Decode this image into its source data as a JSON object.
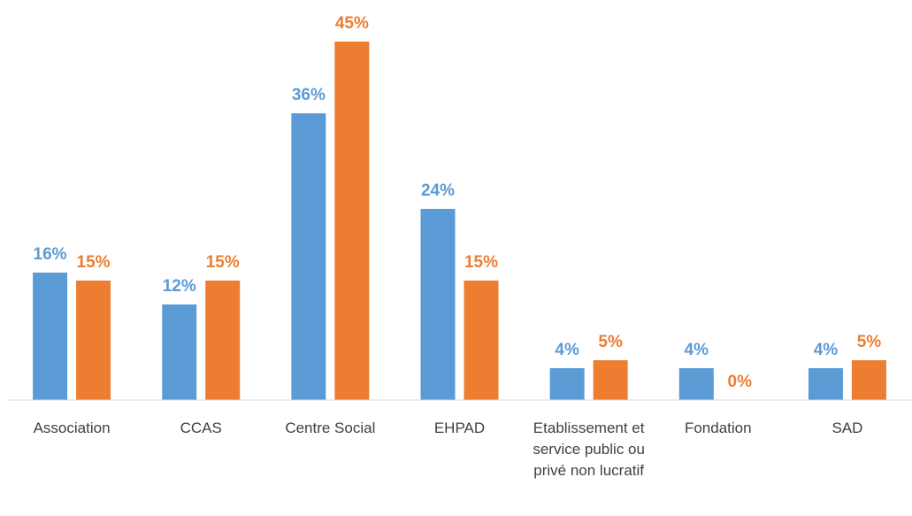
{
  "chart_data": {
    "type": "bar",
    "categories": [
      "Association",
      "CCAS",
      "Centre Social",
      "EHPAD",
      "Etablissement et service public ou privé non lucratif",
      "Fondation",
      "SAD"
    ],
    "series": [
      {
        "color": "#5b9bd5",
        "values": [
          16,
          12,
          36,
          24,
          4,
          4,
          4
        ],
        "value_labels": [
          "16%",
          "12%",
          "36%",
          "24%",
          "4%",
          "4%",
          "4%"
        ]
      },
      {
        "color": "#ed7d31",
        "values": [
          15,
          15,
          45,
          15,
          5,
          0,
          5
        ],
        "value_labels": [
          "15%",
          "15%",
          "45%",
          "15%",
          "5%",
          "0%",
          "5%"
        ]
      }
    ],
    "ylim": [
      0,
      50
    ]
  }
}
